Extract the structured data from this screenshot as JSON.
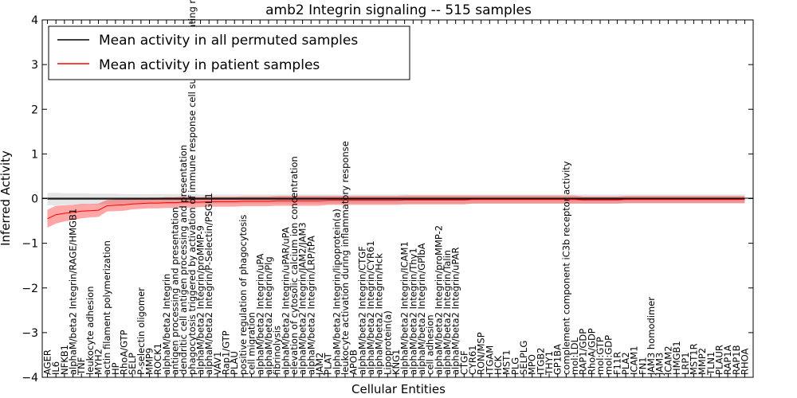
{
  "chart_data": {
    "type": "line",
    "title": "amb2 Integrin signaling -- 515 samples",
    "xlabel": "Cellular Entities",
    "ylabel": "Inferred Activity",
    "ylim": [
      -4,
      4
    ],
    "yticks": [
      -4,
      -3,
      -2,
      -1,
      0,
      1,
      2,
      3,
      4
    ],
    "grid": false,
    "legend_position": "top-left",
    "categories": [
      "AGER",
      "IL6",
      "NFKB1",
      "alphaM/beta2 Integrin/RAGE/HMGB1",
      "TNF",
      "leukocyte adhesion",
      "MYH2",
      "actin filament polymerization",
      "HP",
      "RhoA/GTP",
      "SELP",
      "P-selectin oligomer",
      "MMP9",
      "ROCK1",
      "alphaM/beta2 Integrin",
      "antigen processing and presentation",
      "dendritic cell antigen processing and presentation",
      "phagocytosis triggered by activation of immune response cell surface activating receptor",
      "alphaM/beta2 Integrin/proMMP-9",
      "alphaM/beta2 Integrin/P-Selectin/PSGL1",
      "VAV1",
      "Rap1/GTP",
      "PLAU",
      "positive regulation of phagocytosis",
      "cell migration",
      "alphaM/beta2 Integrin/uPA",
      "alphaM/beta2 Integrin/Plg",
      "fibrinolysis",
      "alphaM/beta2 Integrin/uPAR/uPA",
      "elevation of cytosolic calcium ion concentration",
      "alphaM/beta2 Integrin/JAM2/JAM3",
      "alphaM/beta2 Integrin/LRP/tPA",
      "JAM2",
      "PLAT",
      "alphaM/beta2 Integrin/lipoprotein(a)",
      "leukocyte activation during inflammatory response",
      "APOB",
      "alphaM/beta2 Integrin/CTGF",
      "alphaM/beta2 Integrin/CYR61",
      "alphaM/beta2 Integrin/Hck",
      "Lipoprotein(a)",
      "KNG1",
      "alphaM/beta2 Integrin/ICAM1",
      "alphaM/beta2 Integrin/Thy1",
      "alphaM/beta2 Integrin/GPIbA",
      "cell adhesion",
      "alphaM/beta2 Integrin/proMMP-2",
      "alphaM/beta2 Integrin/Talin",
      "alphaM/beta2 Integrin/uPAR",
      "CTGF",
      "CYR61",
      "RON/MSP",
      "ITGAM",
      "HCK",
      "MST1",
      "PLG",
      "SELPLG",
      "MPO",
      "ITGB2",
      "THY1",
      "GP1BA",
      "complement component iC3b receptor activity",
      "mol:LDL",
      "RAP1/GDP",
      "RhoA/GDP",
      "mol:GTP",
      "mol:GDP",
      "F11R",
      "PLA2",
      "ICAM1",
      "FN1",
      "JAM3 homodimer",
      "JAM3",
      "ICAM2",
      "HMGB1",
      "LRP1",
      "MST1R",
      "MMP2",
      "TLN1",
      "PLAUR",
      "RAP1A",
      "RAP1B",
      "RHOA"
    ],
    "series": [
      {
        "name": "Mean activity in all permuted samples",
        "color": "#000000",
        "band_color": "#aaaaaa",
        "values": [
          -0.01,
          -0.01,
          -0.01,
          -0.01,
          -0.01,
          -0.01,
          -0.01,
          -0.01,
          -0.01,
          -0.01,
          -0.01,
          -0.01,
          -0.01,
          -0.01,
          -0.01,
          -0.01,
          -0.01,
          -0.01,
          -0.01,
          -0.01,
          -0.01,
          -0.01,
          -0.01,
          -0.01,
          -0.01,
          -0.01,
          -0.01,
          -0.01,
          -0.01,
          -0.01,
          -0.01,
          -0.01,
          -0.01,
          -0.01,
          -0.01,
          -0.01,
          -0.01,
          -0.01,
          -0.01,
          -0.01,
          -0.01,
          -0.01,
          -0.01,
          -0.01,
          -0.01,
          -0.01,
          -0.01,
          -0.01,
          -0.01,
          -0.01,
          -0.01,
          -0.01,
          -0.01,
          -0.01,
          -0.01,
          -0.01,
          -0.01,
          -0.01,
          -0.01,
          -0.01,
          -0.01,
          -0.01,
          -0.01,
          -0.01,
          -0.01,
          -0.01,
          -0.01,
          -0.01,
          -0.01,
          -0.01,
          -0.01,
          -0.01,
          -0.01,
          -0.01,
          -0.01,
          -0.01,
          -0.01,
          -0.01,
          -0.01,
          -0.01,
          -0.01,
          -0.01,
          -0.01
        ],
        "band_halfwidth": [
          0.14,
          0.14,
          0.13,
          0.13,
          0.13,
          0.12,
          0.12,
          0.12,
          0.12,
          0.11,
          0.11,
          0.11,
          0.11,
          0.11,
          0.11,
          0.11,
          0.11,
          0.11,
          0.1,
          0.1,
          0.1,
          0.1,
          0.1,
          0.1,
          0.1,
          0.1,
          0.1,
          0.1,
          0.1,
          0.1,
          0.1,
          0.1,
          0.1,
          0.1,
          0.1,
          0.1,
          0.1,
          0.1,
          0.1,
          0.1,
          0.1,
          0.1,
          0.1,
          0.1,
          0.1,
          0.1,
          0.1,
          0.1,
          0.1,
          0.1,
          0.1,
          0.1,
          0.1,
          0.1,
          0.1,
          0.1,
          0.1,
          0.1,
          0.1,
          0.1,
          0.1,
          0.1,
          0.1,
          0.1,
          0.1,
          0.1,
          0.1,
          0.1,
          0.1,
          0.1,
          0.1,
          0.1,
          0.1,
          0.1,
          0.1,
          0.1,
          0.1,
          0.1,
          0.1,
          0.1,
          0.1,
          0.1,
          0.1
        ]
      },
      {
        "name": "Mean activity in patient samples",
        "color": "#ff0000",
        "band_color": "#ff0000",
        "values": [
          -0.45,
          -0.36,
          -0.33,
          -0.31,
          -0.28,
          -0.27,
          -0.26,
          -0.16,
          -0.15,
          -0.14,
          -0.12,
          -0.11,
          -0.1,
          -0.1,
          -0.09,
          -0.09,
          -0.08,
          -0.08,
          -0.08,
          -0.07,
          -0.07,
          -0.07,
          -0.07,
          -0.06,
          -0.06,
          -0.06,
          -0.06,
          -0.05,
          -0.05,
          -0.05,
          -0.05,
          -0.05,
          -0.05,
          -0.04,
          -0.04,
          -0.04,
          -0.04,
          -0.04,
          -0.04,
          -0.04,
          -0.04,
          -0.04,
          -0.03,
          -0.03,
          -0.03,
          -0.03,
          -0.03,
          -0.03,
          -0.03,
          -0.03,
          -0.02,
          -0.02,
          -0.02,
          -0.02,
          -0.02,
          -0.02,
          -0.02,
          -0.02,
          -0.02,
          -0.02,
          -0.02,
          -0.02,
          -0.02,
          -0.03,
          -0.03,
          -0.03,
          -0.03,
          -0.03,
          -0.02,
          -0.02,
          -0.02,
          -0.02,
          -0.02,
          -0.02,
          -0.02,
          -0.02,
          -0.02,
          -0.02,
          -0.02,
          -0.02,
          -0.02,
          -0.02,
          -0.02
        ],
        "band_halfwidth": [
          0.2,
          0.2,
          0.18,
          0.17,
          0.16,
          0.15,
          0.15,
          0.13,
          0.13,
          0.13,
          0.12,
          0.12,
          0.12,
          0.12,
          0.12,
          0.12,
          0.12,
          0.12,
          0.11,
          0.11,
          0.11,
          0.11,
          0.11,
          0.11,
          0.11,
          0.11,
          0.11,
          0.11,
          0.11,
          0.11,
          0.11,
          0.11,
          0.11,
          0.1,
          0.1,
          0.1,
          0.1,
          0.1,
          0.1,
          0.1,
          0.1,
          0.1,
          0.1,
          0.1,
          0.1,
          0.1,
          0.1,
          0.1,
          0.1,
          0.1,
          0.09,
          0.09,
          0.09,
          0.09,
          0.09,
          0.09,
          0.09,
          0.09,
          0.09,
          0.09,
          0.09,
          0.09,
          0.09,
          0.08,
          0.08,
          0.08,
          0.08,
          0.08,
          0.08,
          0.08,
          0.08,
          0.08,
          0.08,
          0.08,
          0.08,
          0.08,
          0.08,
          0.08,
          0.08,
          0.08,
          0.08,
          0.08,
          0.08
        ]
      }
    ]
  }
}
